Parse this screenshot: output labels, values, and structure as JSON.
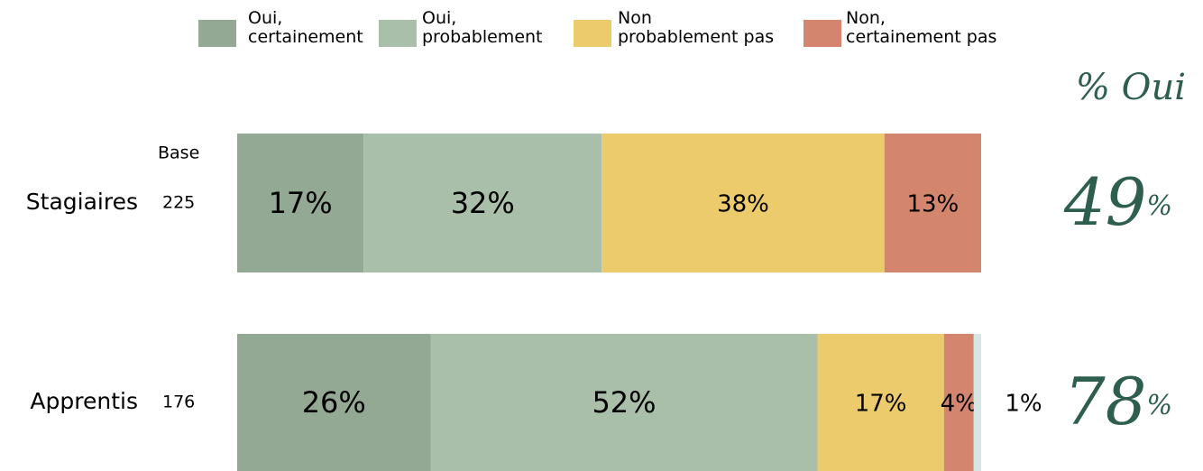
{
  "chart_data": {
    "type": "stacked-bar-horizontal",
    "categories": [
      "Stagiaires",
      "Apprentis"
    ],
    "base_label": "Base",
    "base": [
      225,
      176
    ],
    "xlim": [
      0,
      100
    ],
    "series": [
      {
        "name": "Oui,\ncertainement",
        "color": "#94a994",
        "values": [
          17,
          26
        ],
        "value_labels": [
          "17%",
          "26%"
        ]
      },
      {
        "name": "Oui,\nprobablement",
        "color": "#a9bfa9",
        "values": [
          32,
          52
        ],
        "value_labels": [
          "32%",
          "52%"
        ]
      },
      {
        "name": "Non\nprobablement pas",
        "color": "#ebcb6b",
        "values": [
          38,
          17
        ],
        "value_labels": [
          "38%",
          "17%"
        ]
      },
      {
        "name": "Non,\ncertainement pas",
        "color": "#d4856d",
        "values": [
          13,
          4
        ],
        "value_labels": [
          "13%",
          "4%"
        ]
      },
      {
        "color": "#d6e6e4",
        "values": [
          null,
          1
        ],
        "value_labels": [
          null,
          "1%"
        ]
      }
    ],
    "totals": {
      "title": "% Oui",
      "values": [
        49,
        78
      ],
      "unit": "%"
    }
  }
}
